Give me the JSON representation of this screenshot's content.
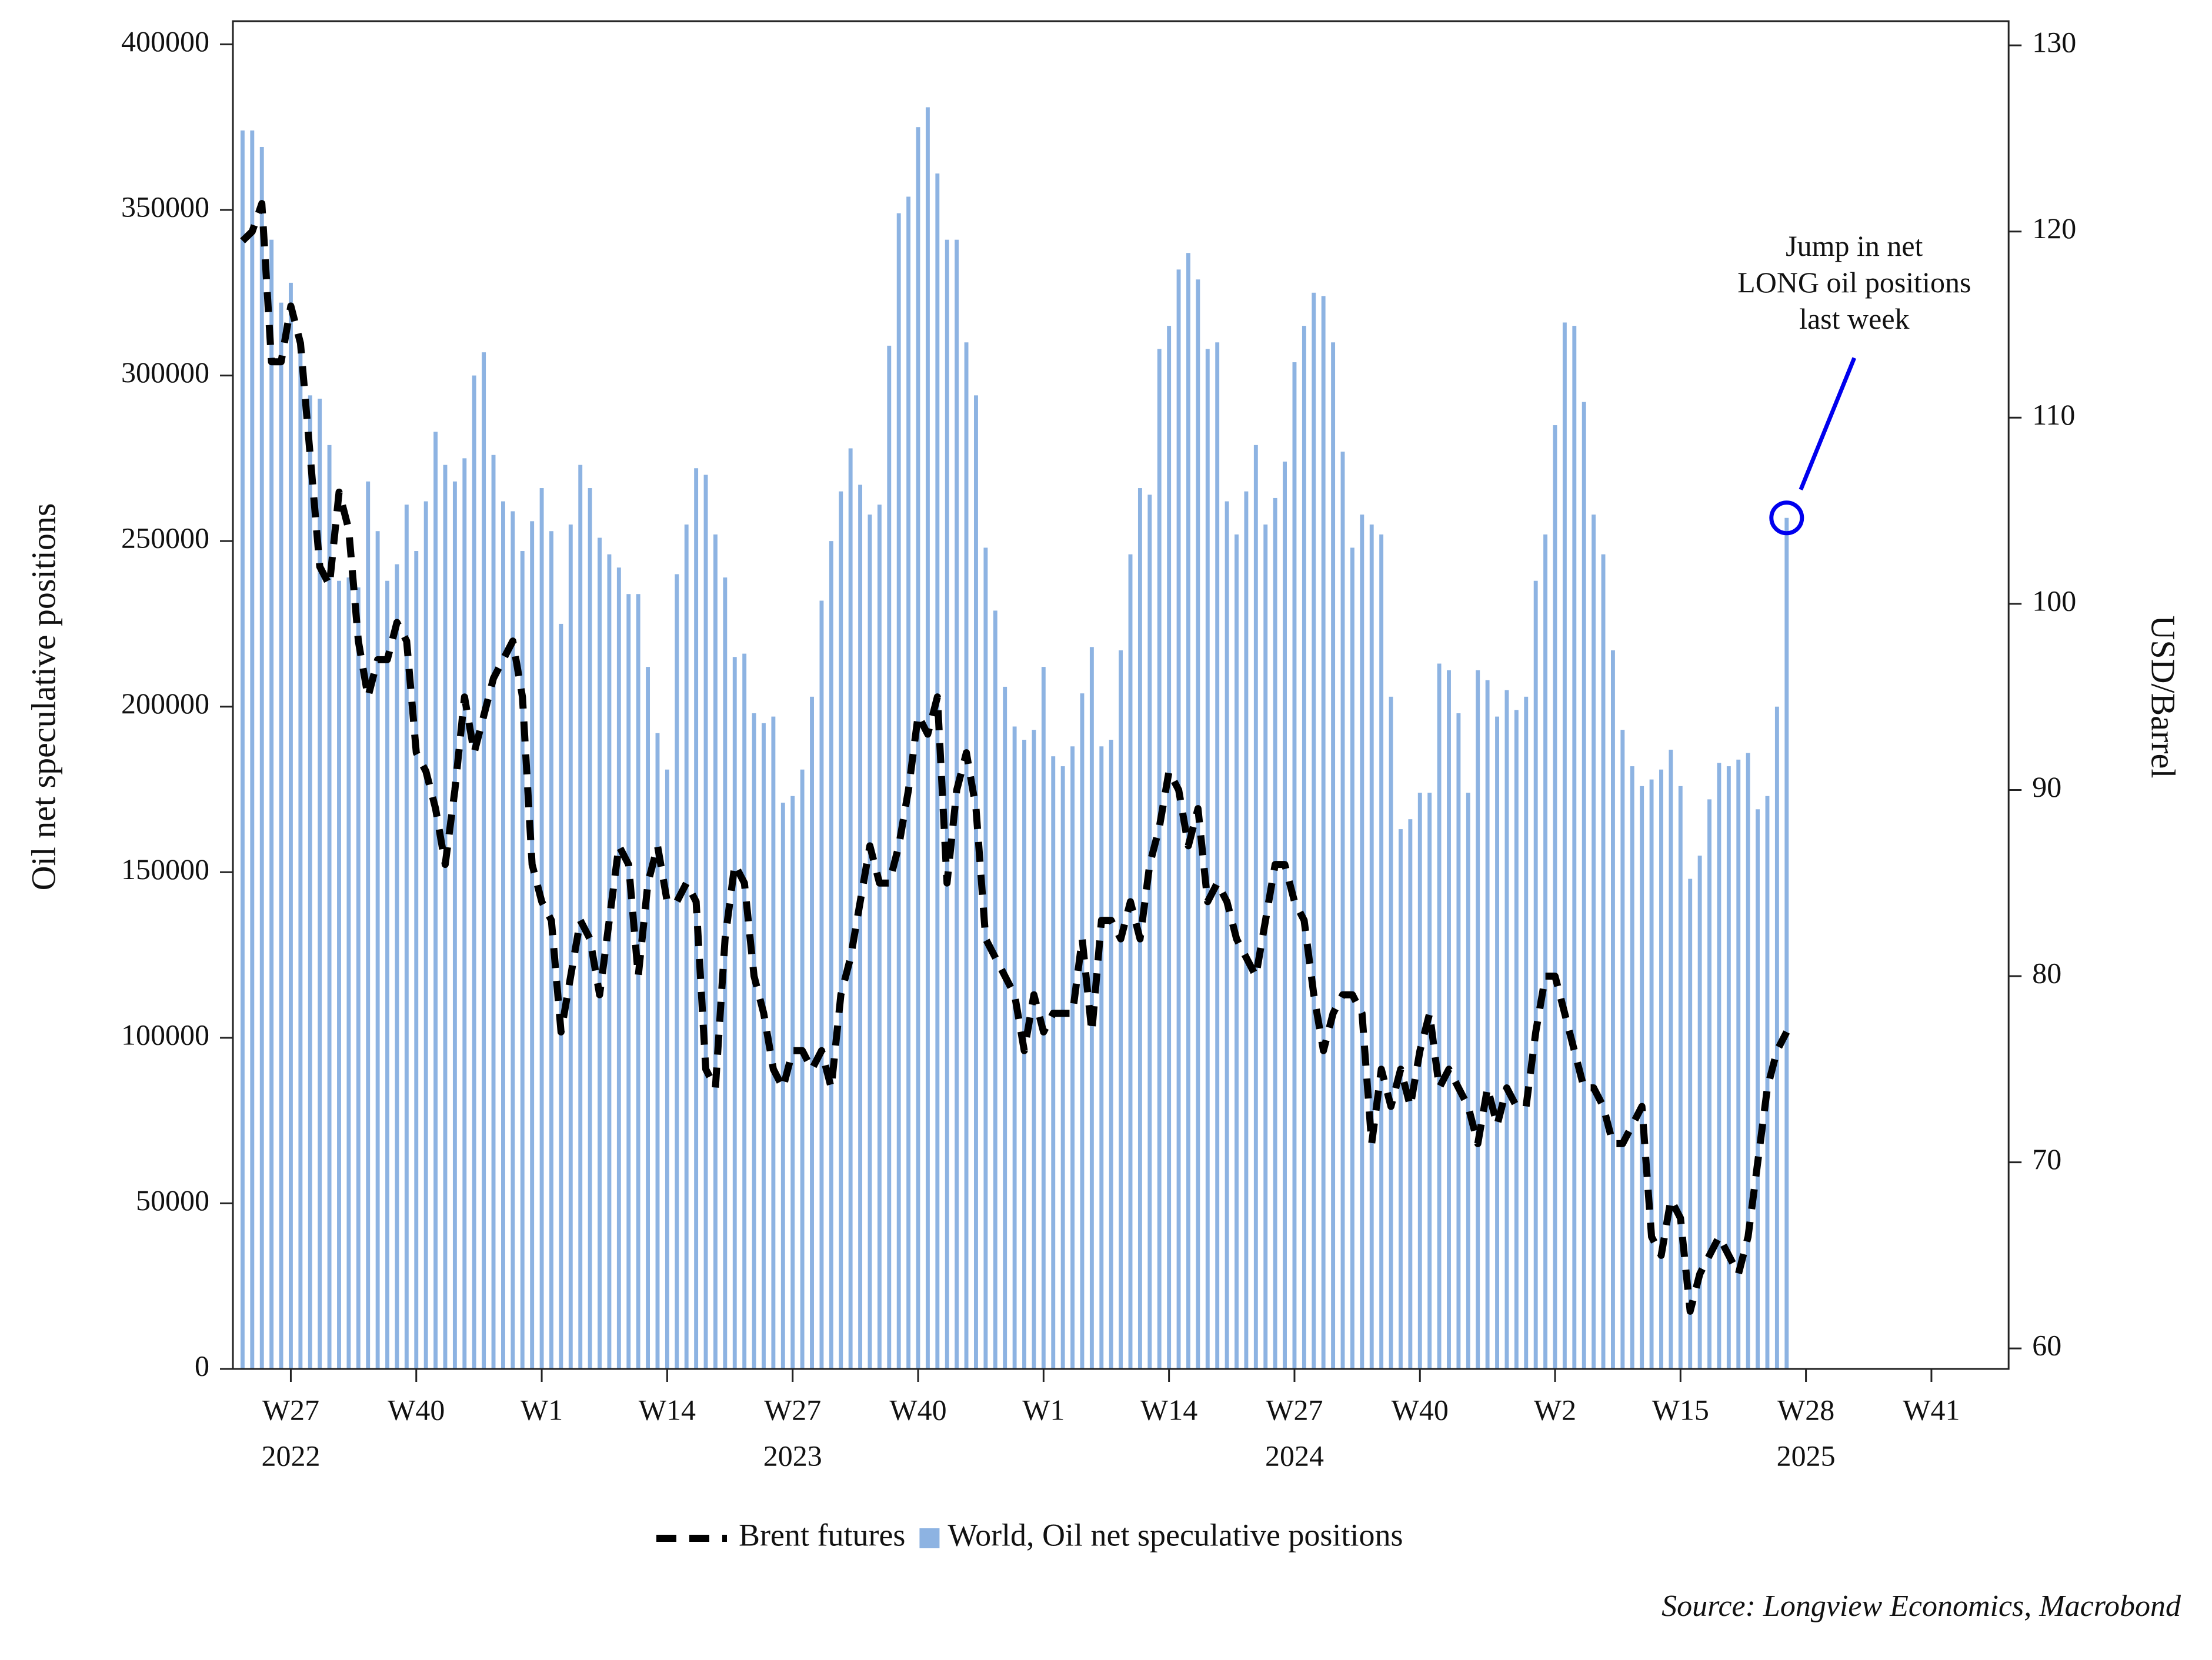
{
  "chart_data": {
    "type": "bar",
    "y_label": "Oil net speculative positions",
    "y2_label": "USD/Barrel",
    "source": "Source: Longview Economics, Macrobond",
    "annotation": [
      "Jump in net",
      "LONG oil positions",
      "last week"
    ],
    "annotation_color": "#0000ee",
    "xlim": [
      "2022-W21",
      "2025-W49"
    ],
    "xticks": [
      {
        "value": "2022-W27",
        "label": "W27"
      },
      {
        "value": "2022-W40",
        "label": "W40"
      },
      {
        "value": "2023-W1",
        "label": "W1"
      },
      {
        "value": "2023-W14",
        "label": "W14"
      },
      {
        "value": "2023-W27",
        "label": "W27"
      },
      {
        "value": "2023-W40",
        "label": "W40"
      },
      {
        "value": "2024-W1",
        "label": "W1"
      },
      {
        "value": "2024-W14",
        "label": "W14"
      },
      {
        "value": "2024-W27",
        "label": "W27"
      },
      {
        "value": "2024-W40",
        "label": "W40"
      },
      {
        "value": "2025-W2",
        "label": "W2"
      },
      {
        "value": "2025-W15",
        "label": "W15"
      },
      {
        "value": "2025-W28",
        "label": "W28"
      },
      {
        "value": "2025-W41",
        "label": "W41"
      }
    ],
    "x_year_labels": [
      {
        "value": "2022-W27",
        "label": "2022"
      },
      {
        "value": "2023-W27",
        "label": "2023"
      },
      {
        "value": "2024-W27",
        "label": "2024"
      },
      {
        "value": "2025-W28",
        "label": "2025"
      }
    ],
    "ylim": [
      0,
      407000
    ],
    "yticks": [
      0,
      50000,
      100000,
      150000,
      200000,
      250000,
      300000,
      350000,
      400000
    ],
    "y2lim": [
      58.9,
      131.3
    ],
    "y2ticks": [
      60,
      70,
      80,
      90,
      100,
      110,
      120,
      130
    ],
    "x": [
      "2022-W22",
      "2022-W23",
      "2022-W24",
      "2022-W25",
      "2022-W26",
      "2022-W27",
      "2022-W28",
      "2022-W29",
      "2022-W30",
      "2022-W31",
      "2022-W32",
      "2022-W33",
      "2022-W34",
      "2022-W35",
      "2022-W36",
      "2022-W37",
      "2022-W38",
      "2022-W39",
      "2022-W40",
      "2022-W41",
      "2022-W42",
      "2022-W43",
      "2022-W44",
      "2022-W45",
      "2022-W46",
      "2022-W47",
      "2022-W48",
      "2022-W49",
      "2022-W50",
      "2022-W51",
      "2022-W52",
      "2023-W1",
      "2023-W2",
      "2023-W3",
      "2023-W4",
      "2023-W5",
      "2023-W6",
      "2023-W7",
      "2023-W8",
      "2023-W9",
      "2023-W10",
      "2023-W11",
      "2023-W12",
      "2023-W13",
      "2023-W14",
      "2023-W15",
      "2023-W16",
      "2023-W17",
      "2023-W18",
      "2023-W19",
      "2023-W20",
      "2023-W21",
      "2023-W22",
      "2023-W23",
      "2023-W24",
      "2023-W25",
      "2023-W26",
      "2023-W27",
      "2023-W28",
      "2023-W29",
      "2023-W30",
      "2023-W31",
      "2023-W32",
      "2023-W33",
      "2023-W34",
      "2023-W35",
      "2023-W36",
      "2023-W37",
      "2023-W38",
      "2023-W39",
      "2023-W40",
      "2023-W41",
      "2023-W42",
      "2023-W43",
      "2023-W44",
      "2023-W45",
      "2023-W46",
      "2023-W47",
      "2023-W48",
      "2023-W49",
      "2023-W50",
      "2023-W51",
      "2023-W52",
      "2024-W1",
      "2024-W2",
      "2024-W3",
      "2024-W4",
      "2024-W5",
      "2024-W6",
      "2024-W7",
      "2024-W8",
      "2024-W9",
      "2024-W10",
      "2024-W11",
      "2024-W12",
      "2024-W13",
      "2024-W14",
      "2024-W15",
      "2024-W16",
      "2024-W17",
      "2024-W18",
      "2024-W19",
      "2024-W20",
      "2024-W21",
      "2024-W22",
      "2024-W23",
      "2024-W24",
      "2024-W25",
      "2024-W26",
      "2024-W27",
      "2024-W28",
      "2024-W29",
      "2024-W30",
      "2024-W31",
      "2024-W32",
      "2024-W33",
      "2024-W34",
      "2024-W35",
      "2024-W36",
      "2024-W37",
      "2024-W38",
      "2024-W39",
      "2024-W40",
      "2024-W41",
      "2024-W42",
      "2024-W43",
      "2024-W44",
      "2024-W45",
      "2024-W46",
      "2024-W47",
      "2024-W48",
      "2024-W49",
      "2024-W50",
      "2024-W51",
      "2024-W52",
      "2025-W1",
      "2025-W2",
      "2025-W3",
      "2025-W4",
      "2025-W5",
      "2025-W6",
      "2025-W7",
      "2025-W8",
      "2025-W9",
      "2025-W10",
      "2025-W11",
      "2025-W12",
      "2025-W13",
      "2025-W14",
      "2025-W15",
      "2025-W16",
      "2025-W17",
      "2025-W18",
      "2025-W19",
      "2025-W20",
      "2025-W21",
      "2025-W22",
      "2025-W23",
      "2025-W24",
      "2025-W25",
      "2025-W26"
    ],
    "series": [
      {
        "name": "Brent futures",
        "type": "line",
        "axis": "y2",
        "color": "#000000",
        "values": [
          119.5,
          120,
          121.5,
          113,
          113,
          116,
          114,
          108,
          102,
          101,
          106,
          104,
          98,
          95,
          97,
          97,
          99,
          98,
          92,
          91,
          89,
          86,
          90,
          95,
          92,
          94,
          96,
          97,
          98,
          95,
          86,
          84,
          83,
          77,
          80,
          83,
          82,
          79,
          83,
          87,
          86,
          80,
          85,
          87,
          84,
          84,
          85,
          84,
          75,
          74,
          82,
          86,
          85,
          80,
          78,
          75,
          74,
          76,
          76,
          75,
          76,
          74,
          79,
          81,
          84,
          87,
          85,
          85,
          87,
          90,
          94,
          93,
          95,
          85,
          90,
          92,
          89,
          82,
          81,
          80,
          79,
          76,
          79,
          77,
          78,
          78,
          78,
          82,
          77,
          83,
          83,
          82,
          84,
          82,
          86,
          88,
          91,
          90,
          87,
          89,
          84,
          85,
          84,
          82,
          81,
          80,
          83,
          86,
          86,
          84,
          83,
          79,
          76,
          78,
          79,
          79,
          78,
          71,
          75,
          73,
          75,
          73,
          76,
          78,
          74,
          75,
          74,
          73,
          71,
          74,
          72,
          74,
          73,
          73,
          77,
          80,
          80,
          78,
          76,
          74,
          74,
          73,
          71,
          71,
          72,
          73,
          66,
          65,
          68,
          67,
          62,
          64,
          65,
          66,
          65,
          64,
          66,
          70,
          74,
          76,
          77
        ]
      },
      {
        "name": "World, Oil net speculative positions",
        "type": "bar",
        "color": "#8db3e2",
        "values": [
          374000,
          374000,
          369000,
          341000,
          322000,
          328000,
          310000,
          294000,
          293000,
          279000,
          238000,
          239000,
          236000,
          268000,
          253000,
          238000,
          243000,
          261000,
          247000,
          262000,
          283000,
          273000,
          268000,
          275000,
          300000,
          307000,
          276000,
          262000,
          259000,
          247000,
          256000,
          266000,
          253000,
          225000,
          255000,
          273000,
          266000,
          251000,
          246000,
          242000,
          234000,
          234000,
          212000,
          192000,
          181000,
          240000,
          255000,
          272000,
          270000,
          252000,
          239000,
          215000,
          216000,
          198000,
          195000,
          197000,
          171000,
          173000,
          181000,
          203000,
          232000,
          250000,
          265000,
          278000,
          267000,
          258000,
          261000,
          309000,
          349000,
          354000,
          375000,
          381000,
          361000,
          341000,
          341000,
          310000,
          294000,
          248000,
          229000,
          206000,
          194000,
          190000,
          193000,
          212000,
          185000,
          182000,
          188000,
          204000,
          218000,
          188000,
          190000,
          217000,
          246000,
          266000,
          264000,
          308000,
          315000,
          332000,
          337000,
          329000,
          308000,
          310000,
          262000,
          252000,
          265000,
          279000,
          255000,
          263000,
          274000,
          304000,
          315000,
          325000,
          324000,
          310000,
          277000,
          248000,
          258000,
          255000,
          252000,
          203000,
          163000,
          166000,
          174000,
          174000,
          213000,
          211000,
          198000,
          174000,
          211000,
          208000,
          197000,
          205000,
          199000,
          203000,
          238000,
          252000,
          285000,
          316000,
          315000,
          292000,
          258000,
          246000,
          217000,
          193000,
          182000,
          176000,
          178000,
          181000,
          187000,
          176000,
          148000,
          155000,
          172000,
          183000,
          182000,
          184000,
          186000,
          169000,
          173000,
          200000,
          257000
        ]
      }
    ]
  }
}
